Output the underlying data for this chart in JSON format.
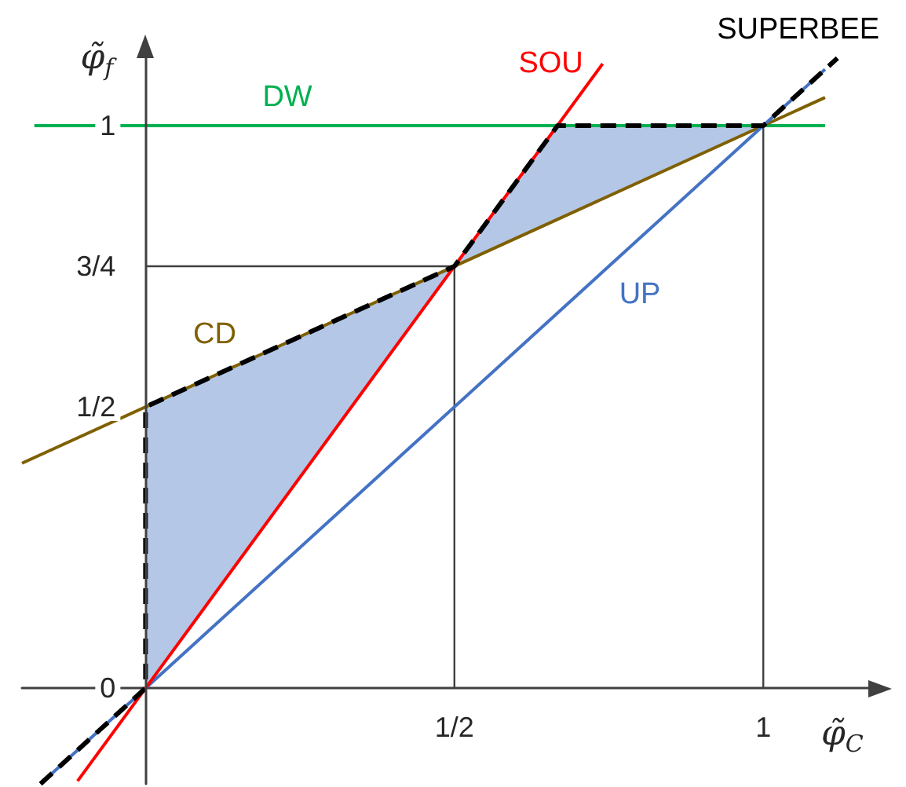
{
  "chart_data": {
    "type": "line",
    "xlabel": "φ̃$_{C}$",
    "ylabel": "φ̃$_{f}$",
    "xlim": [
      -0.2,
      1.17
    ],
    "ylim": [
      -0.17,
      1.12
    ],
    "xticks": [
      {
        "value": 0.5,
        "label": "1/2"
      },
      1
    ],
    "yticks": [
      0,
      {
        "value": 0.5,
        "label": "1/2"
      },
      {
        "value": 0.75,
        "label": "3/4"
      },
      1
    ],
    "series": [
      {
        "color": "#404040",
        "x": [
          0,
          0.5,
          0.5
        ],
        "values": [
          0.75,
          0.75,
          0
        ]
      },
      {
        "color": "#404040",
        "x": [
          1,
          1
        ],
        "values": [
          0,
          1
        ]
      },
      {
        "name": "DW",
        "color": "#00b050",
        "x": [
          -0.18,
          1.1
        ],
        "values": [
          1,
          1
        ]
      },
      {
        "name": "CD",
        "color": "#7f6000",
        "x": [
          -0.2,
          1.1
        ],
        "values": [
          0.4,
          1.05
        ]
      },
      {
        "name": "UP",
        "color": "#4472c4",
        "x": [
          -0.17,
          1.1
        ],
        "values": [
          -0.17,
          1.1
        ]
      },
      {
        "name": "SOU",
        "color": "#ff0000",
        "x": [
          -0.11,
          0.74
        ],
        "values": [
          -0.165,
          1.11
        ]
      },
      {
        "name": "SUPERBEE",
        "color": "#000000",
        "line_style": "dashed",
        "x": [
          -0.17,
          0,
          0,
          0.5,
          0.667,
          1,
          1.12
        ],
        "values": [
          -0.17,
          0,
          0.5,
          0.75,
          1,
          1,
          1.12
        ],
        "lower": [
          null,
          0,
          0,
          0.75,
          0.833,
          1,
          null
        ],
        "upper": [
          null,
          0,
          0.5,
          0.75,
          1,
          1,
          null
        ]
      }
    ]
  }
}
